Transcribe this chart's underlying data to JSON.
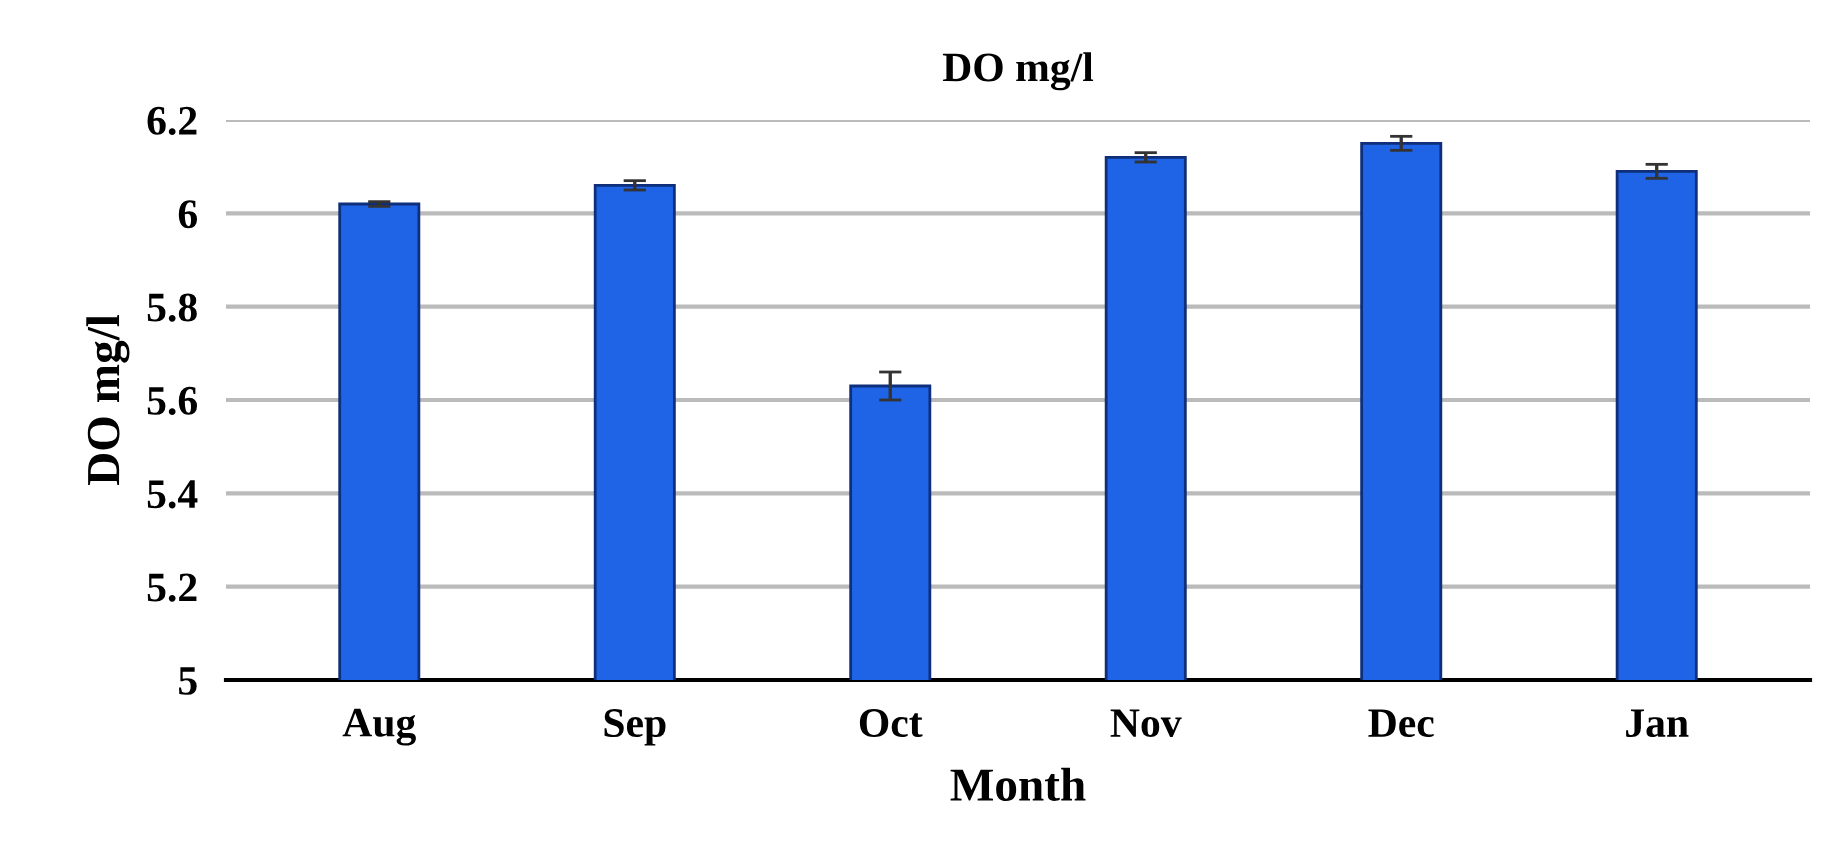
{
  "chart_data": {
    "type": "bar",
    "title": "DO mg/l",
    "xlabel": "Month",
    "ylabel": "DO mg/l",
    "categories": [
      "Aug",
      "Sep",
      "Oct",
      "Nov",
      "Dec",
      "Jan"
    ],
    "values": [
      6.02,
      6.06,
      5.63,
      6.12,
      6.15,
      6.09
    ],
    "errors": [
      0.005,
      0.01,
      0.03,
      0.01,
      0.015,
      0.015
    ],
    "color": "#1f63e6",
    "ylim": [
      5,
      6.2
    ],
    "yticks": [
      5,
      5.2,
      5.4,
      5.6,
      5.8,
      6,
      6.2
    ],
    "grid": "y"
  }
}
